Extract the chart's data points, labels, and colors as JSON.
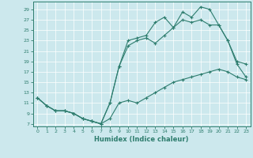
{
  "xlabel": "Humidex (Indice chaleur)",
  "bg_color": "#cce8ed",
  "line_color": "#2e7d6e",
  "grid_color": "#ffffff",
  "xlim": [
    -0.5,
    23.5
  ],
  "ylim": [
    6.5,
    30.5
  ],
  "xticks": [
    0,
    1,
    2,
    3,
    4,
    5,
    6,
    7,
    8,
    9,
    10,
    11,
    12,
    13,
    14,
    15,
    16,
    17,
    18,
    19,
    20,
    21,
    22,
    23
  ],
  "yticks": [
    7,
    9,
    11,
    13,
    15,
    17,
    19,
    21,
    23,
    25,
    27,
    29
  ],
  "line1_x": [
    0,
    1,
    2,
    3,
    4,
    5,
    6,
    7,
    8,
    9,
    10,
    11,
    12,
    13,
    14,
    15,
    16,
    17,
    18,
    19,
    20,
    21,
    22,
    23
  ],
  "line1_y": [
    12,
    10.5,
    9.5,
    9.5,
    9,
    8,
    7.5,
    7,
    8,
    11,
    11.5,
    11,
    12,
    13,
    14,
    15,
    15.5,
    16,
    16.5,
    17,
    17.5,
    17,
    16,
    15.5
  ],
  "line2_x": [
    0,
    1,
    2,
    3,
    4,
    5,
    6,
    7,
    8,
    9,
    10,
    11,
    12,
    13,
    14,
    15,
    16,
    17,
    18,
    19,
    20,
    21,
    22,
    23
  ],
  "line2_y": [
    12,
    10.5,
    9.5,
    9.5,
    9,
    8,
    7.5,
    7,
    11,
    18,
    22,
    23,
    23.5,
    22.5,
    24,
    25.5,
    27,
    26.5,
    27,
    26,
    26,
    23,
    18.5,
    16
  ],
  "line3_x": [
    0,
    1,
    2,
    3,
    4,
    5,
    6,
    7,
    8,
    9,
    10,
    11,
    12,
    13,
    14,
    15,
    16,
    17,
    18,
    19,
    20,
    21,
    22,
    23
  ],
  "line3_y": [
    12,
    10.5,
    9.5,
    9.5,
    9,
    8,
    7.5,
    7,
    11,
    18,
    23,
    23.5,
    24,
    26.5,
    27.5,
    25.5,
    28.5,
    27.5,
    29.5,
    29,
    26,
    23,
    19,
    18.5
  ]
}
